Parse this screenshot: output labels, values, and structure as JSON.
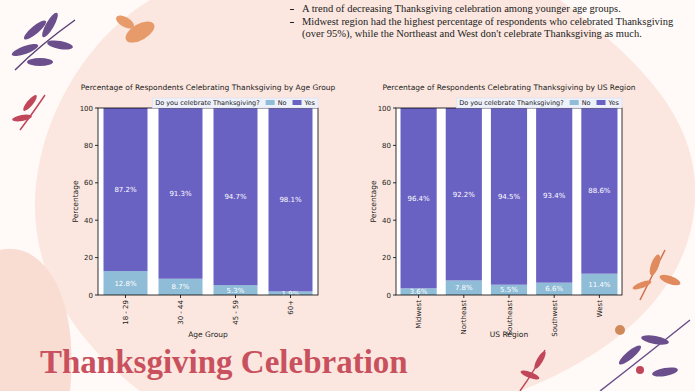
{
  "title": "Thanksgiving Celebration",
  "notes": [
    "A trend of decreasing Thanksgiving celebration among younger age groups.",
    "Midwest region had the highest percentage of respondents who celebrated Thanksgiving (over 95%), while the Northeast and West don't celebrate Thanksgiving as much."
  ],
  "chart_data": [
    {
      "type": "bar",
      "stacked": true,
      "data_labels": true,
      "grid": false,
      "legend": "upper right",
      "title": "Percentage of Respondents Celebrating Thanksgiving by Age Group",
      "xlabel": "Age Group",
      "ylabel": "Percentage",
      "legend_title": "Do you celebrate Thanksgiving?",
      "categories": [
        "18 - 29",
        "30 - 44",
        "45 - 59",
        "60+"
      ],
      "series": [
        {
          "name": "No",
          "color": "#8fbcd6",
          "values": [
            12.8,
            8.7,
            5.3,
            1.9
          ],
          "value_labels": [
            "12.8%",
            "8.7%",
            "5.3%",
            "1.9%"
          ]
        },
        {
          "name": "Yes",
          "color": "#6a62c3",
          "values": [
            87.2,
            91.3,
            94.7,
            98.1
          ],
          "value_labels": [
            "87.2%",
            "91.3%",
            "94.7%",
            "98.1%"
          ]
        }
      ],
      "ylim": [
        0,
        100
      ],
      "yticks": [
        0,
        20,
        40,
        60,
        80,
        100
      ]
    },
    {
      "type": "bar",
      "stacked": true,
      "data_labels": true,
      "grid": false,
      "legend": "upper right",
      "title": "Percentage of Respondents Celebrating Thanksgiving by US Region",
      "xlabel": "US Region",
      "ylabel": "Percentage",
      "legend_title": "Do you celebrate Thanksgiving?",
      "categories": [
        "Midwest",
        "Northeast",
        "Southeast",
        "Southwest",
        "West"
      ],
      "series": [
        {
          "name": "No",
          "color": "#8fbcd6",
          "values": [
            3.6,
            7.8,
            5.5,
            6.6,
            11.4
          ],
          "value_labels": [
            "3.6%",
            "7.8%",
            "5.5%",
            "6.6%",
            "11.4%"
          ]
        },
        {
          "name": "Yes",
          "color": "#6a62c3",
          "values": [
            96.4,
            92.2,
            94.5,
            93.4,
            88.6
          ],
          "value_labels": [
            "96.4%",
            "92.2%",
            "94.5%",
            "93.4%",
            "88.6%"
          ]
        }
      ],
      "ylim": [
        0,
        100
      ],
      "yticks": [
        0,
        20,
        40,
        60,
        80,
        100
      ]
    }
  ]
}
